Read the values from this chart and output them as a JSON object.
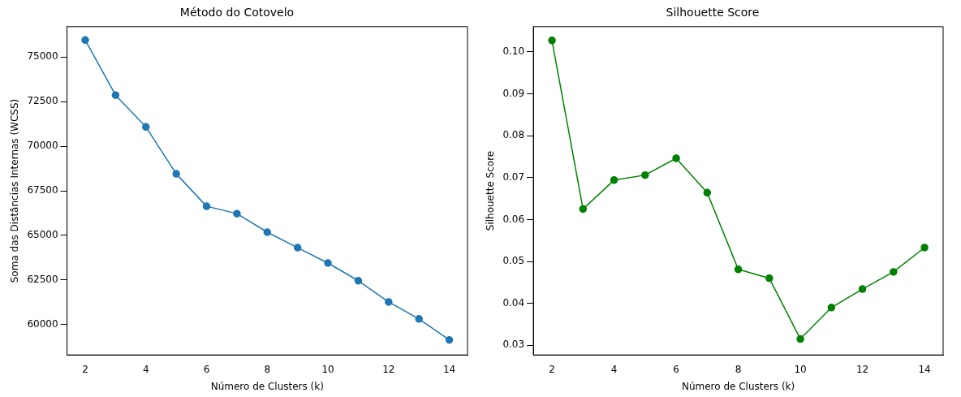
{
  "chart_data": [
    {
      "type": "line",
      "title": "Método do Cotovelo",
      "xlabel": "Número de Clusters (k)",
      "ylabel": "Soma das Distâncias Internas (WCSS)",
      "x": [
        2,
        3,
        4,
        5,
        6,
        7,
        8,
        9,
        10,
        11,
        12,
        13,
        14
      ],
      "series": [
        {
          "color": "#1f77b4",
          "values": [
            75950,
            72860,
            71080,
            68450,
            66630,
            66220,
            65180,
            64310,
            63450,
            62460,
            61270,
            60320,
            59140
          ]
        }
      ],
      "xlim": [
        1.4,
        14.6
      ],
      "xticks": [
        2,
        4,
        6,
        8,
        10,
        12,
        14
      ],
      "ylim": [
        58300,
        76700
      ],
      "yticks": [
        60000,
        62500,
        65000,
        67500,
        70000,
        72500,
        75000
      ],
      "marker": "circle",
      "grid": false,
      "legend": false
    },
    {
      "type": "line",
      "title": "Silhouette Score",
      "xlabel": "Número de Clusters (k)",
      "ylabel": "Silhouette Score",
      "x": [
        2,
        3,
        4,
        5,
        6,
        7,
        8,
        9,
        10,
        11,
        12,
        13,
        14
      ],
      "series": [
        {
          "color": "#008000",
          "values": [
            0.1027,
            0.0625,
            0.0694,
            0.0706,
            0.0746,
            0.0664,
            0.0481,
            0.046,
            0.0315,
            0.039,
            0.0434,
            0.0475,
            0.0533
          ]
        }
      ],
      "xlim": [
        1.4,
        14.6
      ],
      "xticks": [
        2,
        4,
        6,
        8,
        10,
        12,
        14
      ],
      "ylim": [
        0.0277,
        0.106
      ],
      "yticks": [
        0.03,
        0.04,
        0.05,
        0.06,
        0.07,
        0.08,
        0.09,
        {
          "value": 0.1,
          "label": "0.10"
        }
      ],
      "marker": "circle",
      "grid": false,
      "legend": false
    }
  ]
}
